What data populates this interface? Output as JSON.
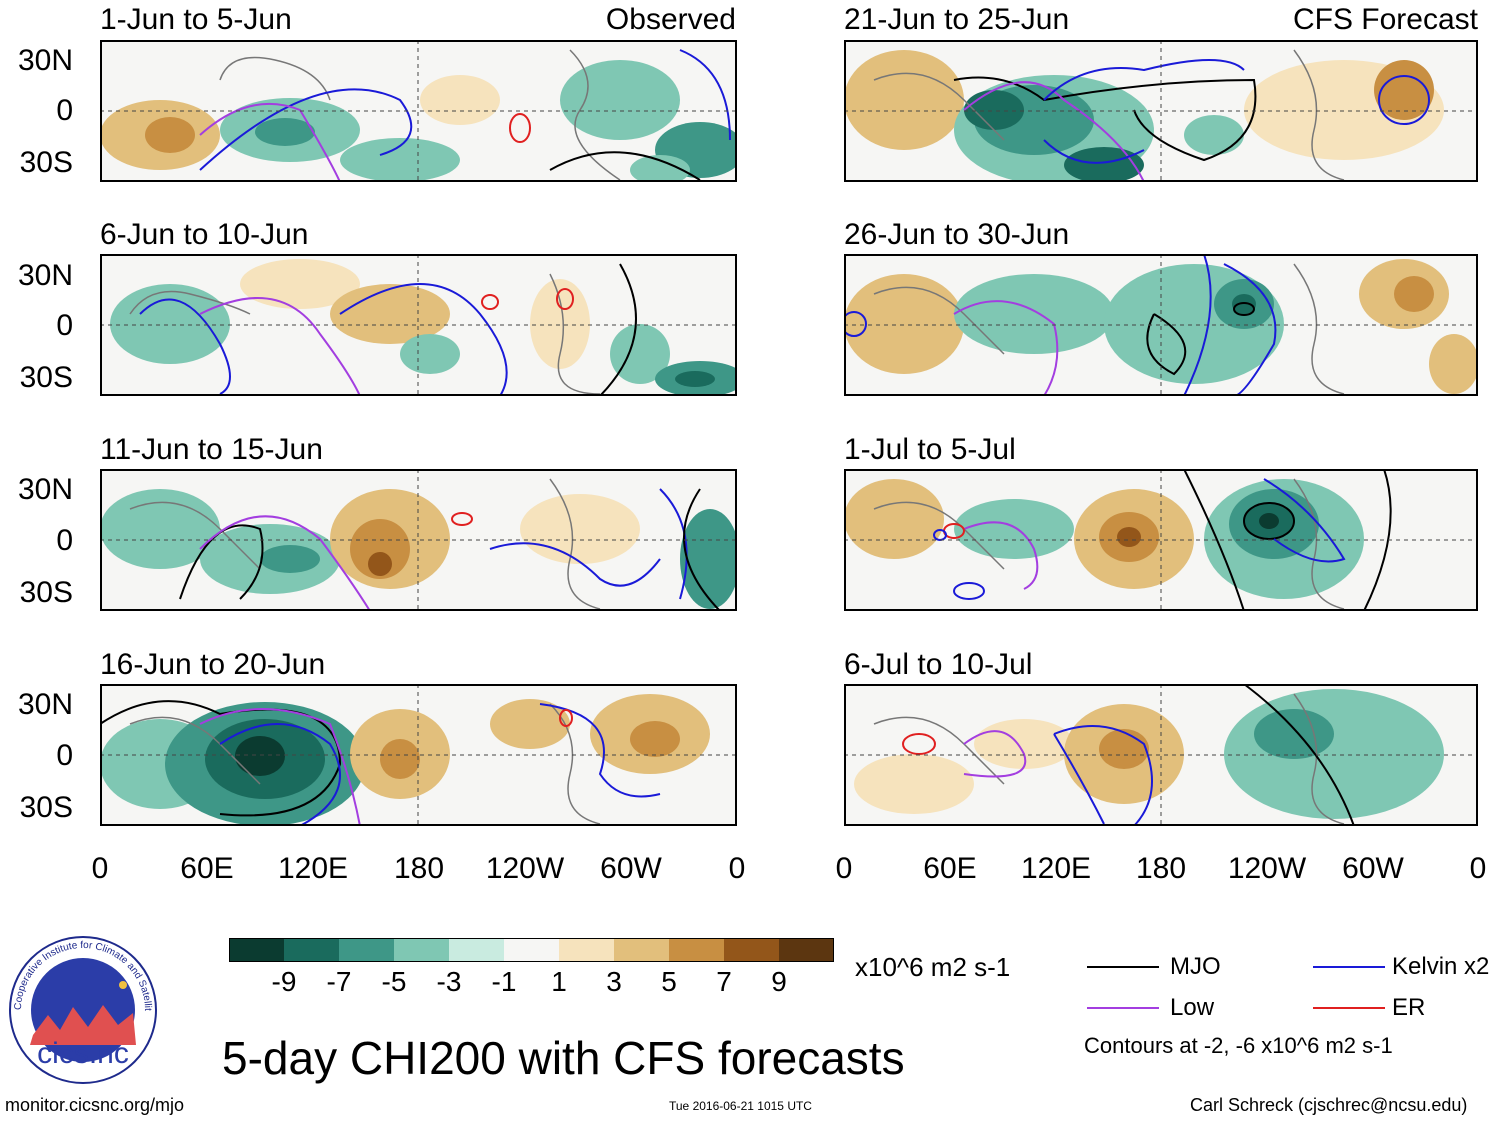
{
  "panels_left": [
    {
      "title": "1-Jun to 5-Jun",
      "tag": "Observed"
    },
    {
      "title": "6-Jun to 10-Jun",
      "tag": ""
    },
    {
      "title": "11-Jun to 15-Jun",
      "tag": ""
    },
    {
      "title": "16-Jun to 20-Jun",
      "tag": ""
    }
  ],
  "panels_right": [
    {
      "title": "21-Jun to 25-Jun",
      "tag": "CFS Forecast"
    },
    {
      "title": "26-Jun to 30-Jun",
      "tag": ""
    },
    {
      "title": "1-Jul to 5-Jul",
      "tag": ""
    },
    {
      "title": "6-Jul to 10-Jul",
      "tag": ""
    }
  ],
  "lat_labels": [
    "30N",
    "0",
    "30S"
  ],
  "lon_labels": [
    "0",
    "60E",
    "120E",
    "180",
    "120W",
    "60W",
    "0"
  ],
  "colorbar": {
    "labels": [
      "-9",
      "-7",
      "-5",
      "-3",
      "-1",
      "1",
      "3",
      "5",
      "7",
      "9"
    ],
    "colors": [
      "#0b3b30",
      "#1a6b5d",
      "#3e9787",
      "#7fc7b3",
      "#c9ebe0",
      "#f6f6f4",
      "#f6e3bd",
      "#e2bf7c",
      "#c88f42",
      "#93561a",
      "#5c3610"
    ],
    "units": "x10^6 m2 s-1"
  },
  "legend": {
    "items": [
      {
        "label": "MJO",
        "color": "#000000"
      },
      {
        "label": "Kelvin x2",
        "color": "#1a1ad8"
      },
      {
        "label": "Low",
        "color": "#a33ee0"
      },
      {
        "label": "ER",
        "color": "#e02020"
      }
    ],
    "note": "Contours at -2, -6 x10^6 m2 s-1"
  },
  "main_title": "5-day CHI200 with CFS forecasts",
  "logo_text": "cics.nc",
  "logo_ring_text": "Cooperative Institute for Climate and Satellites",
  "footer": {
    "url": "monitor.cicsnc.org/mjo",
    "timestamp": "Tue 2016-06-21 1015 UTC",
    "author": "Carl Schreck (cjschrec@ncsu.edu)"
  }
}
